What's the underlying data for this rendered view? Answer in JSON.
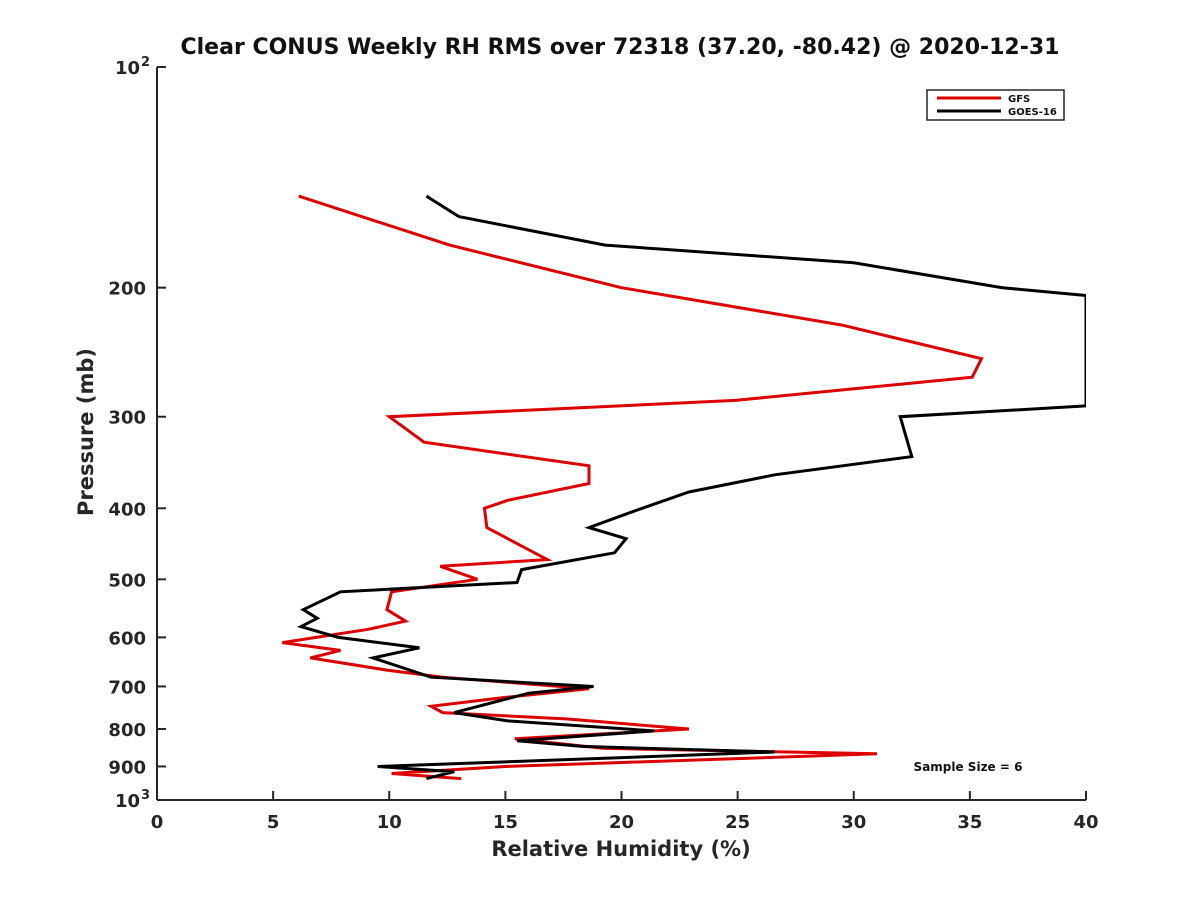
{
  "chart_data": {
    "type": "line",
    "title": "Clear CONUS Weekly RH RMS over 72318 (37.20, -80.42) @ 2020-12-31",
    "xlabel": "Relative Humidity (%)",
    "ylabel": "Pressure (mb)",
    "xlim": [
      0,
      40
    ],
    "ylim": [
      100,
      1000
    ],
    "yscale": "log",
    "y_reversed": true,
    "grid": false,
    "x_ticks": [
      0,
      5,
      10,
      15,
      20,
      25,
      30,
      35,
      40
    ],
    "x_tick_labels": [
      "0",
      "5",
      "10",
      "15",
      "20",
      "25",
      "30",
      "35",
      "40"
    ],
    "y_ticks": [
      100,
      200,
      300,
      400,
      500,
      600,
      700,
      800,
      900,
      1000
    ],
    "y_tick_labels": [
      {
        "base": "10",
        "exp": "2"
      },
      {
        "base": "200",
        "exp": ""
      },
      {
        "base": "300",
        "exp": ""
      },
      {
        "base": "400",
        "exp": ""
      },
      {
        "base": "500",
        "exp": ""
      },
      {
        "base": "600",
        "exp": ""
      },
      {
        "base": "700",
        "exp": ""
      },
      {
        "base": "800",
        "exp": ""
      },
      {
        "base": "900",
        "exp": ""
      },
      {
        "base": "10",
        "exp": "3"
      }
    ],
    "legend_position": "top-right",
    "annotation": "Sample Size = 6",
    "series": [
      {
        "name": "GFS",
        "color": "#dd0000",
        "points": [
          [
            6.1,
            150
          ],
          [
            12.6,
            175
          ],
          [
            20.0,
            200
          ],
          [
            29.5,
            225
          ],
          [
            35.5,
            250
          ],
          [
            35.1,
            265
          ],
          [
            24.9,
            285
          ],
          [
            10.0,
            300
          ],
          [
            11.5,
            325
          ],
          [
            18.6,
            350
          ],
          [
            18.6,
            370
          ],
          [
            15.1,
            390
          ],
          [
            14.1,
            400
          ],
          [
            14.2,
            425
          ],
          [
            16.8,
            470
          ],
          [
            12.2,
            480
          ],
          [
            13.8,
            500
          ],
          [
            10.1,
            520
          ],
          [
            9.9,
            550
          ],
          [
            10.7,
            570
          ],
          [
            9.1,
            585
          ],
          [
            5.4,
            610
          ],
          [
            7.9,
            625
          ],
          [
            6.6,
            640
          ],
          [
            9.9,
            665
          ],
          [
            12.3,
            680
          ],
          [
            18.6,
            705
          ],
          [
            14.9,
            725
          ],
          [
            11.8,
            745
          ],
          [
            12.3,
            760
          ],
          [
            17.6,
            775
          ],
          [
            22.9,
            800
          ],
          [
            15.4,
            825
          ],
          [
            19.2,
            850
          ],
          [
            31.0,
            865
          ],
          [
            15.0,
            900
          ],
          [
            10.1,
            920
          ],
          [
            13.1,
            935
          ]
        ]
      },
      {
        "name": "GOES-16",
        "color": "#000000",
        "points": [
          [
            11.6,
            150
          ],
          [
            13.0,
            160
          ],
          [
            19.3,
            175
          ],
          [
            30.0,
            185
          ],
          [
            36.4,
            200
          ],
          [
            40.0,
            205
          ],
          [
            40.0,
            290
          ],
          [
            32.0,
            300
          ],
          [
            32.5,
            340
          ],
          [
            26.6,
            360
          ],
          [
            22.9,
            380
          ],
          [
            20.4,
            405
          ],
          [
            18.6,
            425
          ],
          [
            20.2,
            440
          ],
          [
            19.7,
            460
          ],
          [
            15.7,
            485
          ],
          [
            15.5,
            505
          ],
          [
            7.9,
            520
          ],
          [
            6.3,
            550
          ],
          [
            6.9,
            565
          ],
          [
            6.2,
            580
          ],
          [
            7.8,
            600
          ],
          [
            11.3,
            620
          ],
          [
            9.3,
            640
          ],
          [
            11.8,
            680
          ],
          [
            18.8,
            700
          ],
          [
            16.0,
            715
          ],
          [
            12.8,
            760
          ],
          [
            15.1,
            780
          ],
          [
            21.4,
            805
          ],
          [
            15.5,
            830
          ],
          [
            18.3,
            845
          ],
          [
            26.6,
            860
          ],
          [
            9.5,
            900
          ],
          [
            12.8,
            915
          ],
          [
            11.6,
            935
          ]
        ]
      }
    ]
  }
}
